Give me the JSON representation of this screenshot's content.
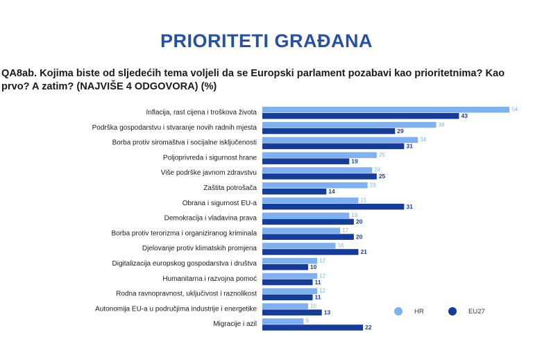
{
  "page_title": "PRIORITETI GRAĐANA",
  "question": "QA8ab. Kojima biste od sljedećih tema voljeli da se Europski parlament pozabavi kao prioritetnima? Kao prvo?  A zatim? (NAJVIŠE 4 ODGOVORA) (%)",
  "colors": {
    "title": "#2550a8",
    "hr": "#7fb0ef",
    "eu27": "#163c9a"
  },
  "chart_data": {
    "type": "bar",
    "orientation": "horizontal",
    "categories": [
      "Inflacija, rast cijena i troškova života",
      "Podrška gospodarstvu i stvaranje novih radnih mjesta",
      "Borba protiv siromaštva i socijalne isključenosti",
      "Poljoprivreda i sigurnost hrane",
      "Više podrške javnom zdravstvu",
      "Zaštita potrošača",
      "Obrana i sigurnost EU-a",
      "Demokracija i vladavina prava",
      "Borba protiv terorizma i organiziranog kriminala",
      "Djelovanje protiv klimatskih promjena",
      "Digitalizacija europskog gospodarstva i društva",
      "Humanitarna i razvojna pomoć",
      "Rodna ravnopravnost, uključivost i raznolikost",
      "Autonomija EU-a u područjima industrije i energetike",
      "Migracije i azil"
    ],
    "series": [
      {
        "name": "HR",
        "color": "#7fb0ef",
        "values": [
          54,
          38,
          34,
          25,
          24,
          23,
          21,
          19,
          17,
          16,
          12,
          12,
          12,
          10,
          9
        ]
      },
      {
        "name": "EU27",
        "color": "#163c9a",
        "values": [
          43,
          29,
          31,
          19,
          25,
          14,
          31,
          20,
          20,
          21,
          10,
          11,
          11,
          13,
          22
        ]
      }
    ],
    "xlim": [
      0,
      54
    ],
    "grid": false,
    "legend_position": "bottom-right"
  }
}
